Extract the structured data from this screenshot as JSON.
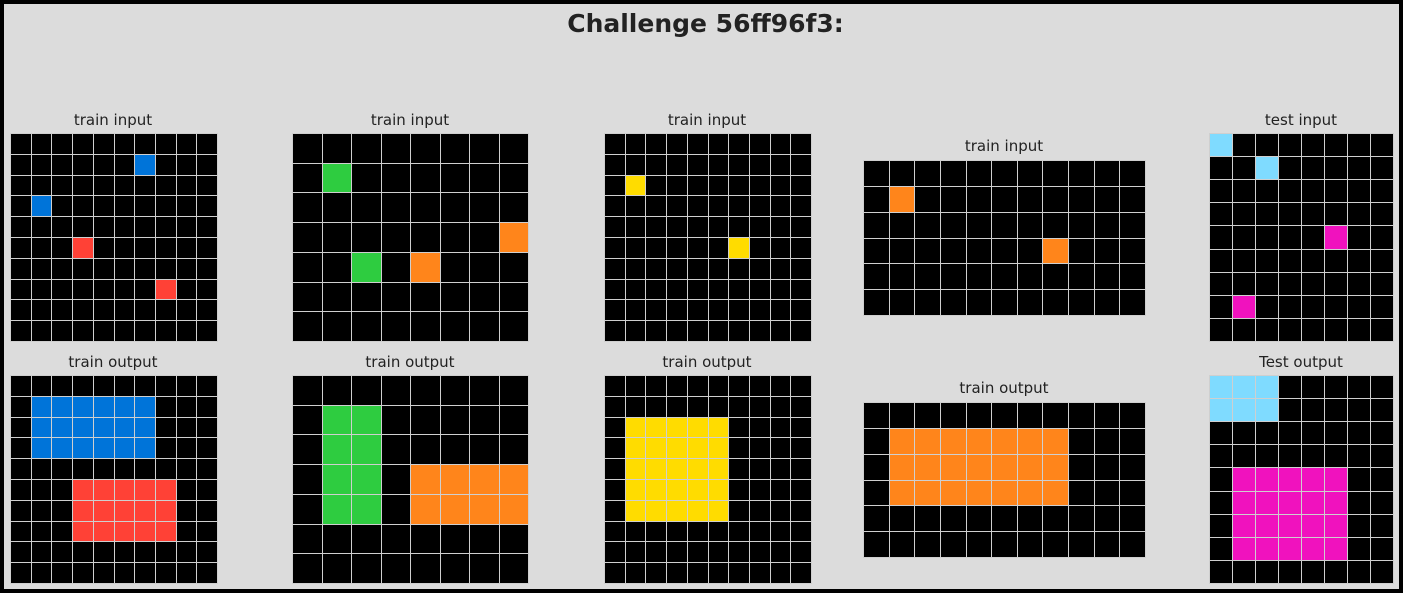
{
  "title": "Challenge 56ff96f3:",
  "palette": {
    "0": "#000000",
    "1": "#0074D9",
    "2": "#FF4136",
    "3": "#2ECC40",
    "4": "#FFDC00",
    "5": "#AAAAAA",
    "6": "#F012BE",
    "7": "#FF851B",
    "8": "#7FDBFF",
    "9": "#870C25"
  },
  "panels": [
    {
      "id": "train-1-input",
      "label": "train input",
      "grid": [
        [
          0,
          0,
          0,
          0,
          0,
          0,
          0,
          0,
          0,
          0
        ],
        [
          0,
          0,
          0,
          0,
          0,
          0,
          1,
          0,
          0,
          0
        ],
        [
          0,
          0,
          0,
          0,
          0,
          0,
          0,
          0,
          0,
          0
        ],
        [
          0,
          1,
          0,
          0,
          0,
          0,
          0,
          0,
          0,
          0
        ],
        [
          0,
          0,
          0,
          0,
          0,
          0,
          0,
          0,
          0,
          0
        ],
        [
          0,
          0,
          0,
          2,
          0,
          0,
          0,
          0,
          0,
          0
        ],
        [
          0,
          0,
          0,
          0,
          0,
          0,
          0,
          0,
          0,
          0
        ],
        [
          0,
          0,
          0,
          0,
          0,
          0,
          0,
          2,
          0,
          0
        ],
        [
          0,
          0,
          0,
          0,
          0,
          0,
          0,
          0,
          0,
          0
        ],
        [
          0,
          0,
          0,
          0,
          0,
          0,
          0,
          0,
          0,
          0
        ]
      ]
    },
    {
      "id": "train-1-output",
      "label": "train output",
      "grid": [
        [
          0,
          0,
          0,
          0,
          0,
          0,
          0,
          0,
          0,
          0
        ],
        [
          0,
          1,
          1,
          1,
          1,
          1,
          1,
          0,
          0,
          0
        ],
        [
          0,
          1,
          1,
          1,
          1,
          1,
          1,
          0,
          0,
          0
        ],
        [
          0,
          1,
          1,
          1,
          1,
          1,
          1,
          0,
          0,
          0
        ],
        [
          0,
          0,
          0,
          0,
          0,
          0,
          0,
          0,
          0,
          0
        ],
        [
          0,
          0,
          0,
          2,
          2,
          2,
          2,
          2,
          0,
          0
        ],
        [
          0,
          0,
          0,
          2,
          2,
          2,
          2,
          2,
          0,
          0
        ],
        [
          0,
          0,
          0,
          2,
          2,
          2,
          2,
          2,
          0,
          0
        ],
        [
          0,
          0,
          0,
          0,
          0,
          0,
          0,
          0,
          0,
          0
        ],
        [
          0,
          0,
          0,
          0,
          0,
          0,
          0,
          0,
          0,
          0
        ]
      ]
    },
    {
      "id": "train-2-input",
      "label": "train input",
      "grid": [
        [
          0,
          0,
          0,
          0,
          0,
          0,
          0,
          0
        ],
        [
          0,
          3,
          0,
          0,
          0,
          0,
          0,
          0
        ],
        [
          0,
          0,
          0,
          0,
          0,
          0,
          0,
          0
        ],
        [
          0,
          0,
          0,
          0,
          0,
          0,
          0,
          7
        ],
        [
          0,
          0,
          3,
          0,
          7,
          0,
          0,
          0
        ],
        [
          0,
          0,
          0,
          0,
          0,
          0,
          0,
          0
        ],
        [
          0,
          0,
          0,
          0,
          0,
          0,
          0,
          0
        ]
      ]
    },
    {
      "id": "train-2-output",
      "label": "train output",
      "grid": [
        [
          0,
          0,
          0,
          0,
          0,
          0,
          0,
          0
        ],
        [
          0,
          3,
          3,
          0,
          0,
          0,
          0,
          0
        ],
        [
          0,
          3,
          3,
          0,
          0,
          0,
          0,
          0
        ],
        [
          0,
          3,
          3,
          0,
          7,
          7,
          7,
          7
        ],
        [
          0,
          3,
          3,
          0,
          7,
          7,
          7,
          7
        ],
        [
          0,
          0,
          0,
          0,
          0,
          0,
          0,
          0
        ],
        [
          0,
          0,
          0,
          0,
          0,
          0,
          0,
          0
        ]
      ]
    },
    {
      "id": "train-3-input",
      "label": "train input",
      "grid": [
        [
          0,
          0,
          0,
          0,
          0,
          0,
          0,
          0,
          0,
          0
        ],
        [
          0,
          0,
          0,
          0,
          0,
          0,
          0,
          0,
          0,
          0
        ],
        [
          0,
          4,
          0,
          0,
          0,
          0,
          0,
          0,
          0,
          0
        ],
        [
          0,
          0,
          0,
          0,
          0,
          0,
          0,
          0,
          0,
          0
        ],
        [
          0,
          0,
          0,
          0,
          0,
          0,
          0,
          0,
          0,
          0
        ],
        [
          0,
          0,
          0,
          0,
          0,
          0,
          4,
          0,
          0,
          0
        ],
        [
          0,
          0,
          0,
          0,
          0,
          0,
          0,
          0,
          0,
          0
        ],
        [
          0,
          0,
          0,
          0,
          0,
          0,
          0,
          0,
          0,
          0
        ],
        [
          0,
          0,
          0,
          0,
          0,
          0,
          0,
          0,
          0,
          0
        ],
        [
          0,
          0,
          0,
          0,
          0,
          0,
          0,
          0,
          0,
          0
        ]
      ]
    },
    {
      "id": "train-3-output",
      "label": "train output",
      "grid": [
        [
          0,
          0,
          0,
          0,
          0,
          0,
          0,
          0,
          0,
          0
        ],
        [
          0,
          0,
          0,
          0,
          0,
          0,
          0,
          0,
          0,
          0
        ],
        [
          0,
          4,
          4,
          4,
          4,
          4,
          0,
          0,
          0,
          0
        ],
        [
          0,
          4,
          4,
          4,
          4,
          4,
          0,
          0,
          0,
          0
        ],
        [
          0,
          4,
          4,
          4,
          4,
          4,
          0,
          0,
          0,
          0
        ],
        [
          0,
          4,
          4,
          4,
          4,
          4,
          0,
          0,
          0,
          0
        ],
        [
          0,
          4,
          4,
          4,
          4,
          4,
          0,
          0,
          0,
          0
        ],
        [
          0,
          0,
          0,
          0,
          0,
          0,
          0,
          0,
          0,
          0
        ],
        [
          0,
          0,
          0,
          0,
          0,
          0,
          0,
          0,
          0,
          0
        ],
        [
          0,
          0,
          0,
          0,
          0,
          0,
          0,
          0,
          0,
          0
        ]
      ]
    },
    {
      "id": "train-4-input",
      "label": "train input",
      "grid": [
        [
          0,
          0,
          0,
          0,
          0,
          0,
          0,
          0,
          0,
          0,
          0
        ],
        [
          0,
          7,
          0,
          0,
          0,
          0,
          0,
          0,
          0,
          0,
          0
        ],
        [
          0,
          0,
          0,
          0,
          0,
          0,
          0,
          0,
          0,
          0,
          0
        ],
        [
          0,
          0,
          0,
          0,
          0,
          0,
          0,
          7,
          0,
          0,
          0
        ],
        [
          0,
          0,
          0,
          0,
          0,
          0,
          0,
          0,
          0,
          0,
          0
        ],
        [
          0,
          0,
          0,
          0,
          0,
          0,
          0,
          0,
          0,
          0,
          0
        ]
      ]
    },
    {
      "id": "train-4-output",
      "label": "train output",
      "grid": [
        [
          0,
          0,
          0,
          0,
          0,
          0,
          0,
          0,
          0,
          0,
          0
        ],
        [
          0,
          7,
          7,
          7,
          7,
          7,
          7,
          7,
          0,
          0,
          0
        ],
        [
          0,
          7,
          7,
          7,
          7,
          7,
          7,
          7,
          0,
          0,
          0
        ],
        [
          0,
          7,
          7,
          7,
          7,
          7,
          7,
          7,
          0,
          0,
          0
        ],
        [
          0,
          0,
          0,
          0,
          0,
          0,
          0,
          0,
          0,
          0,
          0
        ],
        [
          0,
          0,
          0,
          0,
          0,
          0,
          0,
          0,
          0,
          0,
          0
        ]
      ]
    },
    {
      "id": "test-input",
      "label": "test input",
      "grid": [
        [
          8,
          0,
          0,
          0,
          0,
          0,
          0,
          0
        ],
        [
          0,
          0,
          8,
          0,
          0,
          0,
          0,
          0
        ],
        [
          0,
          0,
          0,
          0,
          0,
          0,
          0,
          0
        ],
        [
          0,
          0,
          0,
          0,
          0,
          0,
          0,
          0
        ],
        [
          0,
          0,
          0,
          0,
          0,
          6,
          0,
          0
        ],
        [
          0,
          0,
          0,
          0,
          0,
          0,
          0,
          0
        ],
        [
          0,
          0,
          0,
          0,
          0,
          0,
          0,
          0
        ],
        [
          0,
          6,
          0,
          0,
          0,
          0,
          0,
          0
        ],
        [
          0,
          0,
          0,
          0,
          0,
          0,
          0,
          0
        ]
      ]
    },
    {
      "id": "test-output",
      "label": "Test output",
      "grid": [
        [
          8,
          8,
          8,
          0,
          0,
          0,
          0,
          0
        ],
        [
          8,
          8,
          8,
          0,
          0,
          0,
          0,
          0
        ],
        [
          0,
          0,
          0,
          0,
          0,
          0,
          0,
          0
        ],
        [
          0,
          0,
          0,
          0,
          0,
          0,
          0,
          0
        ],
        [
          0,
          6,
          6,
          6,
          6,
          6,
          0,
          0
        ],
        [
          0,
          6,
          6,
          6,
          6,
          6,
          0,
          0
        ],
        [
          0,
          6,
          6,
          6,
          6,
          6,
          0,
          0
        ],
        [
          0,
          6,
          6,
          6,
          6,
          6,
          0,
          0
        ],
        [
          0,
          0,
          0,
          0,
          0,
          0,
          0,
          0
        ]
      ]
    }
  ]
}
